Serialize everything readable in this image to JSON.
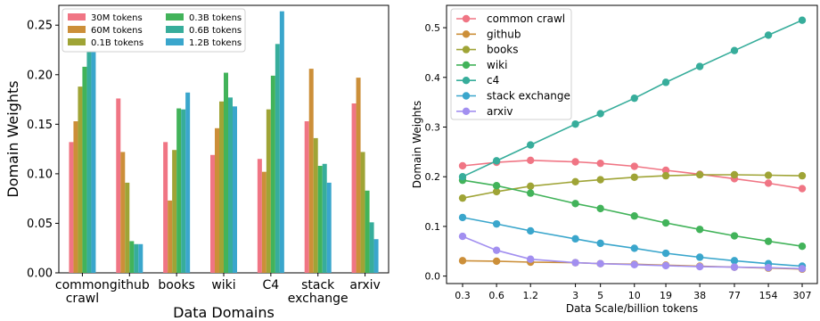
{
  "chart_data": [
    {
      "type": "bar",
      "xlabel": "Data Domains",
      "ylabel": "Domain Weights",
      "ylim": [
        0,
        0.27
      ],
      "yticks": [
        "0.00",
        "0.05",
        "0.10",
        "0.15",
        "0.20",
        "0.25"
      ],
      "yticks_values": [
        0,
        0.05,
        0.1,
        0.15,
        0.2,
        0.25
      ],
      "grid": false,
      "legend_position": "top-left",
      "legend_columns": 2,
      "categories": [
        [
          "common",
          "crawl"
        ],
        [
          "github"
        ],
        [
          "books"
        ],
        [
          "wiki"
        ],
        [
          "C4"
        ],
        [
          "stack",
          "exchange"
        ],
        [
          "arxiv"
        ]
      ],
      "series": [
        {
          "name": "30M tokens",
          "color": "#f07584",
          "values": [
            0.132,
            0.176,
            0.132,
            0.119,
            0.115,
            0.153,
            0.171
          ]
        },
        {
          "name": "60M tokens",
          "color": "#cc8f39",
          "values": [
            0.153,
            0.122,
            0.073,
            0.146,
            0.102,
            0.206,
            0.197
          ]
        },
        {
          "name": "0.1B tokens",
          "color": "#9fa436",
          "values": [
            0.188,
            0.091,
            0.124,
            0.173,
            0.165,
            0.136,
            0.122
          ]
        },
        {
          "name": "0.3B tokens",
          "color": "#42b35a",
          "values": [
            0.208,
            0.032,
            0.166,
            0.202,
            0.199,
            0.108,
            0.083
          ]
        },
        {
          "name": "0.6B tokens",
          "color": "#37ad9b",
          "values": [
            0.237,
            0.029,
            0.165,
            0.177,
            0.231,
            0.11,
            0.051
          ]
        },
        {
          "name": "1.2B tokens",
          "color": "#3aa6cc",
          "values": [
            0.232,
            0.029,
            0.182,
            0.168,
            0.264,
            0.091,
            0.034
          ]
        }
      ]
    },
    {
      "type": "line",
      "xlabel": "Data Scale/billion tokens",
      "ylabel": "Domain Weights",
      "ylim": [
        -0.015,
        0.545
      ],
      "yticks": [
        "0.0",
        "0.1",
        "0.2",
        "0.3",
        "0.4",
        "0.5"
      ],
      "yticks_values": [
        0,
        0.1,
        0.2,
        0.3,
        0.4,
        0.5
      ],
      "x": [
        0.3,
        0.6,
        1.2,
        3,
        5,
        10,
        19,
        38,
        77,
        154,
        307
      ],
      "xtick_labels": [
        "0.3",
        "0.6",
        "1.2",
        "3",
        "5",
        "10",
        "19",
        "38",
        "77",
        "154",
        "307"
      ],
      "xscale": "log",
      "grid": false,
      "legend_position": "top-left",
      "series": [
        {
          "name": "common crawl",
          "color": "#f07584",
          "values": [
            0.222,
            0.229,
            0.233,
            0.23,
            0.227,
            0.221,
            0.213,
            0.205,
            0.196,
            0.187,
            0.176
          ]
        },
        {
          "name": "github",
          "color": "#cc8f39",
          "values": [
            0.031,
            0.03,
            0.028,
            0.027,
            0.025,
            0.024,
            0.022,
            0.02,
            0.018,
            0.016,
            0.014
          ]
        },
        {
          "name": "books",
          "color": "#9fa436",
          "values": [
            0.157,
            0.17,
            0.181,
            0.19,
            0.194,
            0.199,
            0.202,
            0.204,
            0.204,
            0.203,
            0.202
          ]
        },
        {
          "name": "wiki",
          "color": "#42b35a",
          "values": [
            0.193,
            0.182,
            0.167,
            0.146,
            0.136,
            0.121,
            0.107,
            0.094,
            0.081,
            0.07,
            0.06
          ]
        },
        {
          "name": "c4",
          "color": "#37ad9b",
          "values": [
            0.2,
            0.232,
            0.264,
            0.306,
            0.327,
            0.358,
            0.39,
            0.422,
            0.454,
            0.485,
            0.515
          ]
        },
        {
          "name": "stack exchange",
          "color": "#3aa6cc",
          "values": [
            0.118,
            0.105,
            0.091,
            0.075,
            0.066,
            0.056,
            0.046,
            0.038,
            0.031,
            0.025,
            0.02
          ]
        },
        {
          "name": "arxiv",
          "color": "#a28ff0",
          "values": [
            0.08,
            0.052,
            0.034,
            0.027,
            0.025,
            0.023,
            0.021,
            0.019,
            0.018,
            0.017,
            0.015
          ]
        }
      ]
    }
  ]
}
